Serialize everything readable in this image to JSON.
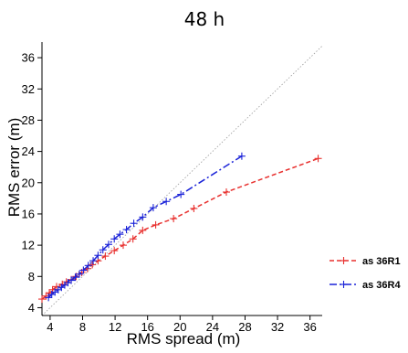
{
  "chart_data": {
    "type": "line",
    "title": "48 h",
    "xlabel": "RMS spread (m)",
    "ylabel": "RMS error (m)",
    "xlim": [
      3,
      37.5
    ],
    "ylim": [
      3,
      38
    ],
    "xticks": [
      4,
      8,
      12,
      16,
      20,
      24,
      28,
      32,
      36
    ],
    "yticks": [
      4,
      8,
      12,
      16,
      20,
      24,
      28,
      32,
      36
    ],
    "grid": false,
    "diagonal_reference": true,
    "legend_position": "right",
    "series": [
      {
        "name": "as 36R1",
        "color": "#e8312f",
        "line_style": "dashed",
        "marker": "plus",
        "x": [
          3.0,
          3.5,
          3.9,
          4.3,
          4.8,
          5.5,
          6.0,
          6.6,
          7.2,
          7.9,
          8.6,
          9.2,
          9.9,
          10.8,
          11.9,
          13.0,
          14.2,
          15.4,
          17.0,
          19.2,
          21.7,
          25.7,
          37.0
        ],
        "y": [
          5.1,
          5.5,
          5.9,
          6.3,
          6.7,
          7.0,
          7.3,
          7.6,
          8.0,
          8.5,
          9.0,
          9.5,
          10.0,
          10.6,
          11.3,
          12.0,
          12.8,
          13.9,
          14.6,
          15.4,
          16.7,
          18.8,
          23.1
        ]
      },
      {
        "name": "as 36R4",
        "color": "#1a22d8",
        "line_style": "dashdot",
        "marker": "plus",
        "x": [
          3.8,
          4.2,
          4.6,
          5.0,
          5.4,
          5.8,
          6.2,
          6.6,
          7.1,
          7.6,
          8.1,
          8.7,
          9.3,
          9.9,
          10.5,
          11.2,
          11.9,
          12.6,
          13.4,
          14.3,
          15.4,
          16.7,
          18.3,
          20.1,
          27.6
        ],
        "y": [
          5.3,
          5.7,
          6.0,
          6.3,
          6.6,
          6.9,
          7.2,
          7.5,
          7.9,
          8.3,
          8.8,
          9.4,
          10.0,
          10.7,
          11.4,
          12.1,
          12.8,
          13.4,
          14.0,
          14.8,
          15.6,
          16.8,
          17.6,
          18.5,
          23.4
        ]
      }
    ]
  }
}
